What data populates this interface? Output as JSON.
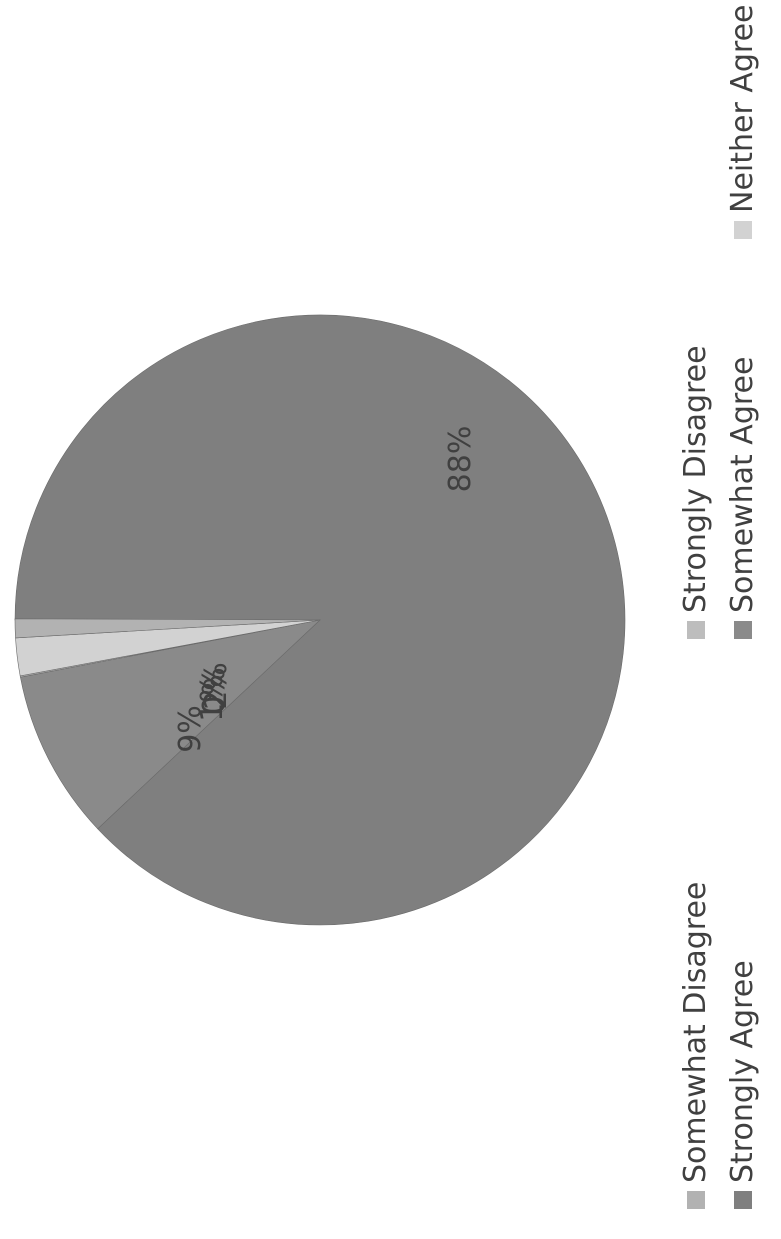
{
  "chart_data": {
    "type": "pie",
    "title": "",
    "slices": [
      {
        "name": "Strongly Agree",
        "value": 88,
        "label": "88%",
        "color": "#7f7f7f"
      },
      {
        "name": "Somewhat Agree",
        "value": 9,
        "label": "9%",
        "color": "#8a8a8a"
      },
      {
        "name": "Neither Agree or Disagree",
        "value": 2,
        "label": "2%",
        "color": "#d2d2d2"
      },
      {
        "name": "Somewhat Disagree",
        "value": 1,
        "label": "1%",
        "color": "#b2b2b2"
      },
      {
        "name": "Strongly Disagree",
        "value": 0,
        "label": "0%",
        "color": "#bdbdbd"
      }
    ],
    "legend_position": "bottom",
    "orientation": "rotated 90 degrees counter-clockwise"
  }
}
